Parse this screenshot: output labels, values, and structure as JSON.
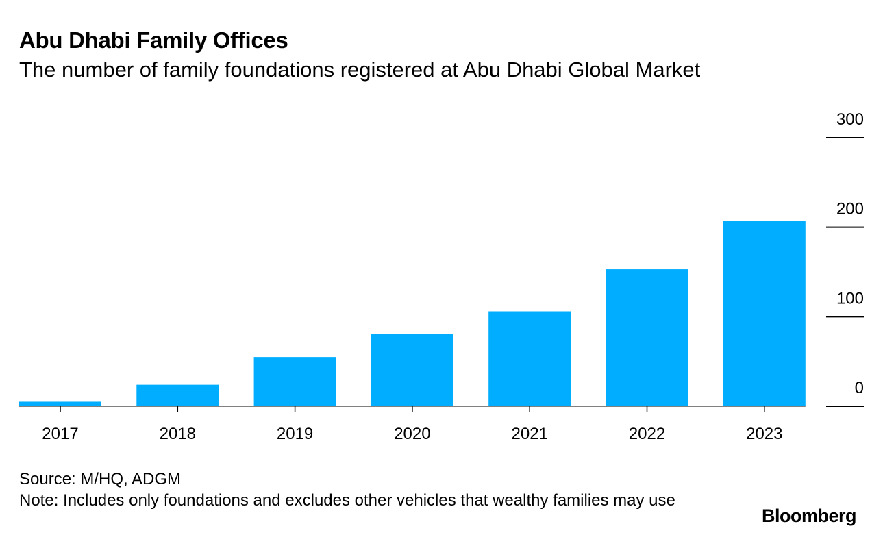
{
  "chart_data": {
    "type": "bar",
    "title": "Abu Dhabi Family Offices",
    "subtitle": "The number of family foundations registered at Abu Dhabi Global Market",
    "categories": [
      "2017",
      "2018",
      "2019",
      "2020",
      "2021",
      "2022",
      "2023"
    ],
    "values": [
      5,
      24,
      55,
      81,
      106,
      153,
      207
    ],
    "ylim": [
      0,
      300
    ],
    "yticks": [
      0,
      100,
      200,
      300
    ],
    "ytick_labels": [
      "0",
      "100",
      "200",
      "300"
    ],
    "xlabel": "",
    "ylabel": "",
    "grid": false,
    "yaxis_side": "right",
    "colors": {
      "bar": "#00adff",
      "axis": "#000000"
    }
  },
  "footer": {
    "source": "Source: M/HQ, ADGM",
    "note": "Note: Includes only foundations and excludes other vehicles that wealthy families may use"
  },
  "brand": "Bloomberg"
}
